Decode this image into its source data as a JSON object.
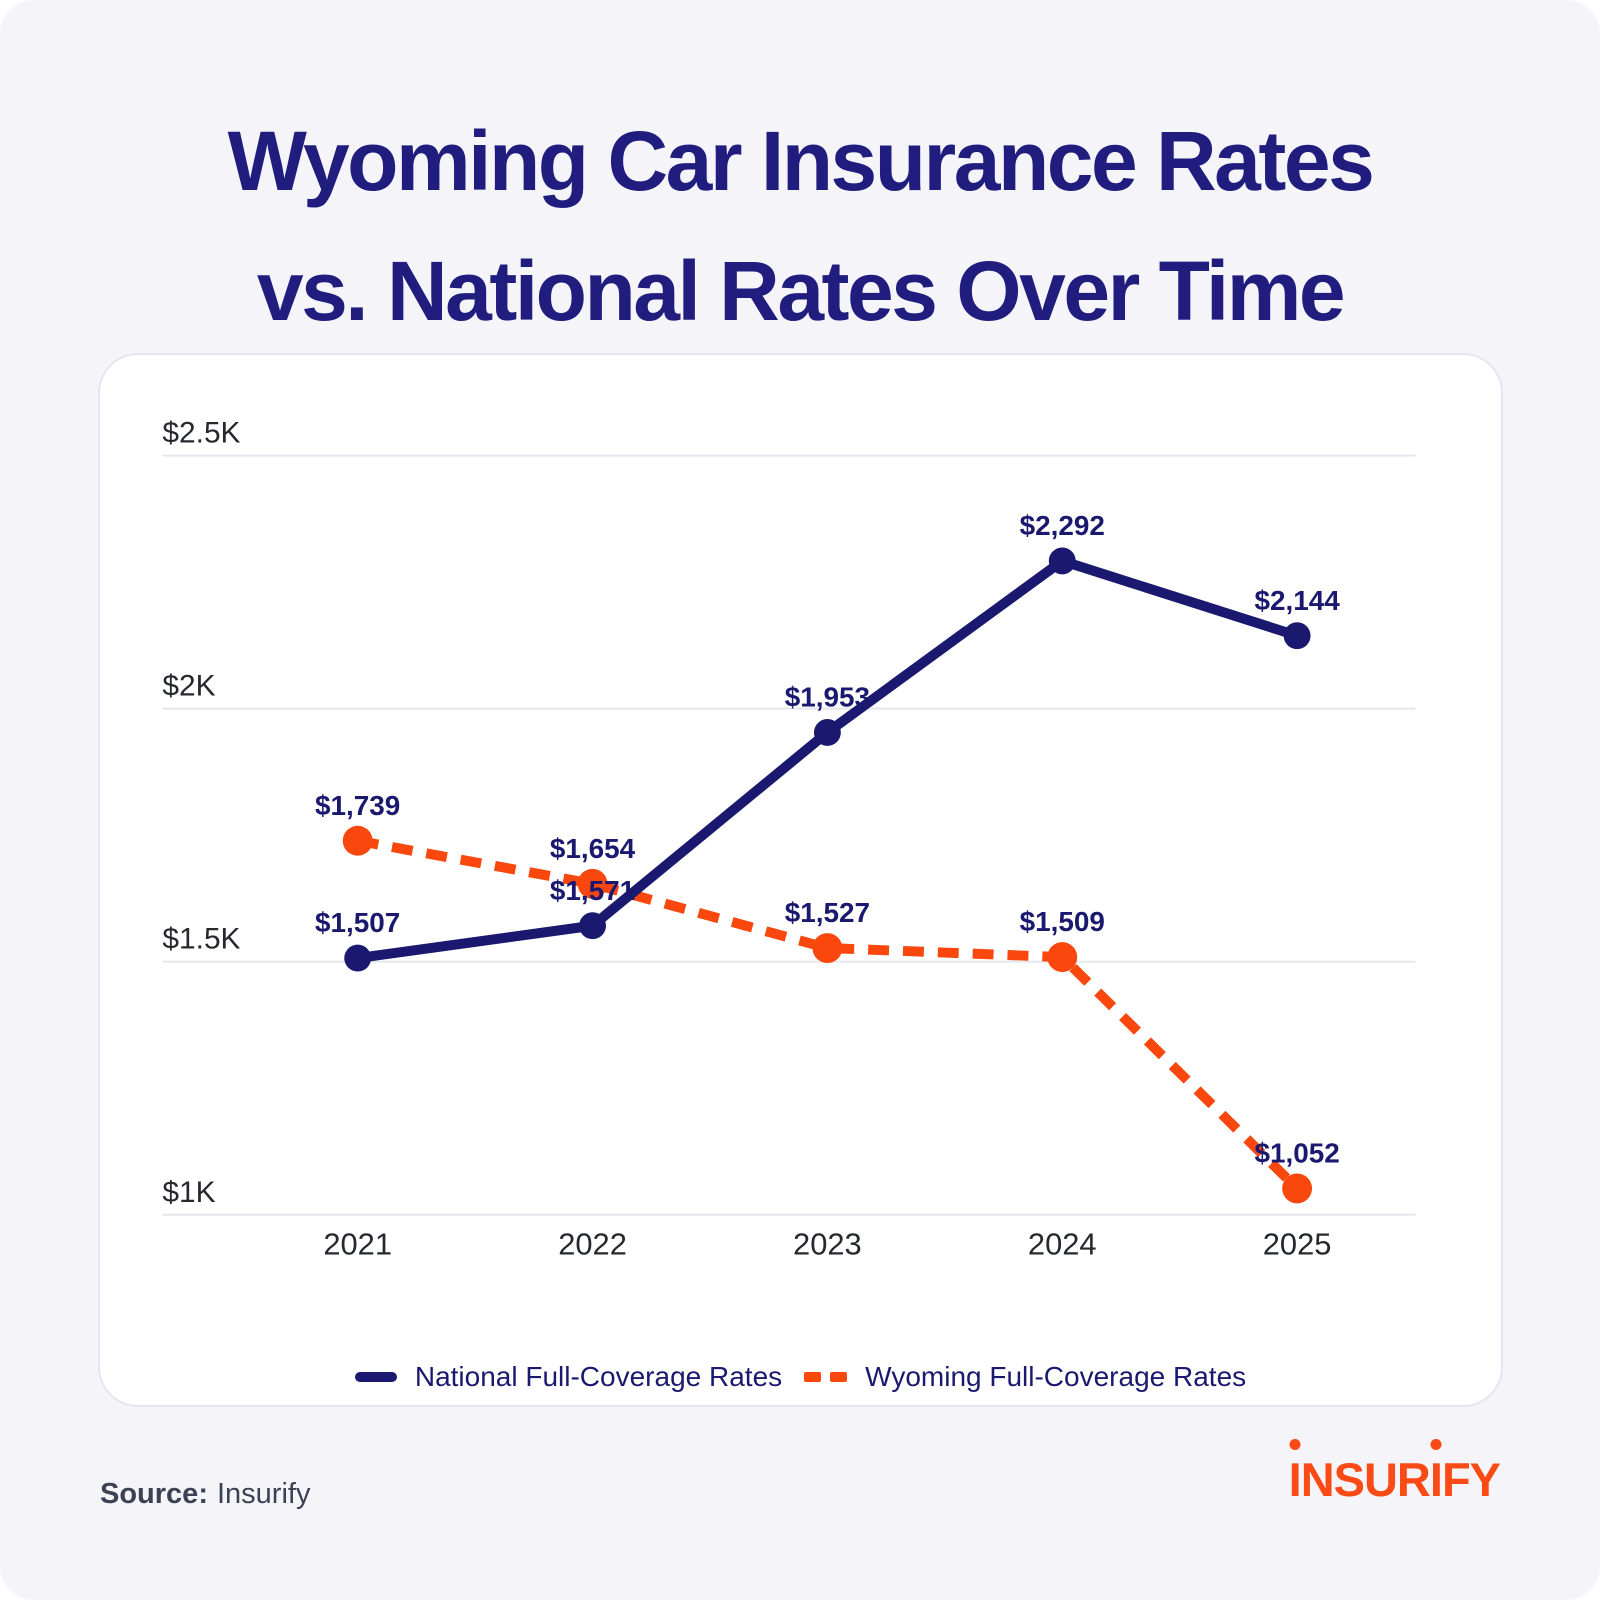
{
  "title": {
    "line1": "Wyoming Car Insurance Rates",
    "line2": "vs. National Rates Over Time"
  },
  "chart_data": {
    "type": "line",
    "x": [
      "2021",
      "2022",
      "2023",
      "2024",
      "2025"
    ],
    "series": [
      {
        "name": "National Full-Coverage Rates",
        "values": [
          1507,
          1571,
          1953,
          2292,
          2144
        ],
        "color": "#1A196F",
        "style": "solid"
      },
      {
        "name": "Wyoming Full-Coverage Rates",
        "values": [
          1739,
          1654,
          1527,
          1509,
          1052
        ],
        "color": "#F9470D",
        "style": "dashed"
      }
    ],
    "y_ticks": [
      {
        "label": "$2.5K",
        "value": 2500
      },
      {
        "label": "$2K",
        "value": 2000
      },
      {
        "label": "$1.5K",
        "value": 1500
      },
      {
        "label": "$1K",
        "value": 1000
      }
    ],
    "ylim": [
      1000,
      2500
    ],
    "grid": true,
    "legend_position": "bottom",
    "point_label_format": "$#,###"
  },
  "source": {
    "label": "Source:",
    "value": "Insurify"
  },
  "logo": {
    "parts": [
      "I",
      "NSUR",
      "I",
      "FY"
    ]
  },
  "colors": {
    "background": "#F5F5F9",
    "navy": "#1A196F",
    "orange": "#F9470D",
    "title": "#201D7E",
    "card_border": "#E2E6F2",
    "gridline": "#E4E7EE",
    "axis_text": "#25282E",
    "source_text": "#3A4254",
    "logo_orange": "#FA4A15"
  }
}
